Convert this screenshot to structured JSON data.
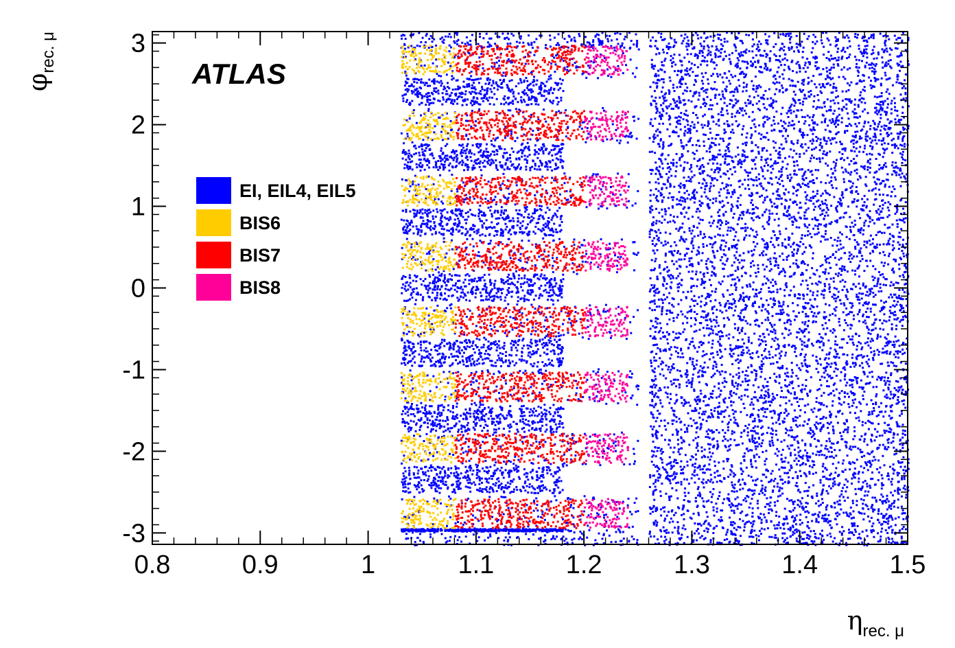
{
  "chart_data": {
    "type": "scatter",
    "experiment_label": "ATLAS",
    "xlabel": {
      "symbol": "η",
      "subscript": "rec. μ"
    },
    "ylabel": {
      "symbol": "φ",
      "subscript": "rec. μ"
    },
    "xlim": [
      0.8,
      1.5
    ],
    "ylim": [
      -3.14,
      3.14
    ],
    "x_ticks": [
      0.8,
      0.9,
      1.0,
      1.1,
      1.2,
      1.3,
      1.4,
      1.5
    ],
    "x_tick_labels": [
      "0.8",
      "0.9",
      "1",
      "1.1",
      "1.2",
      "1.3",
      "1.4",
      "1.5"
    ],
    "y_ticks": [
      3,
      2,
      1,
      0,
      -1,
      -2,
      -3
    ],
    "y_tick_labels": [
      "3",
      "2",
      "1",
      "0",
      "-1",
      "-2",
      "-3"
    ],
    "grid": false,
    "legend_placement": "left",
    "series": [
      {
        "name": "EI, EIL4, EIL5",
        "color": "#0000ff",
        "description": "dense occupancy for eta 1.03-1.5, with gaps in phi for eta below ~1.26"
      },
      {
        "name": "BIS6",
        "color": "#ffcc00",
        "eta_range": [
          1.03,
          1.08
        ]
      },
      {
        "name": "BIS7",
        "color": "#ff0000",
        "eta_range": [
          1.08,
          1.2
        ]
      },
      {
        "name": "BIS8",
        "color": "#ff0099",
        "eta_range": [
          1.2,
          1.24
        ]
      }
    ],
    "bis_sector_phi_centers": [
      2.8,
      2.0,
      1.2,
      0.4,
      -0.4,
      -1.2,
      -1.95,
      -2.75
    ]
  }
}
